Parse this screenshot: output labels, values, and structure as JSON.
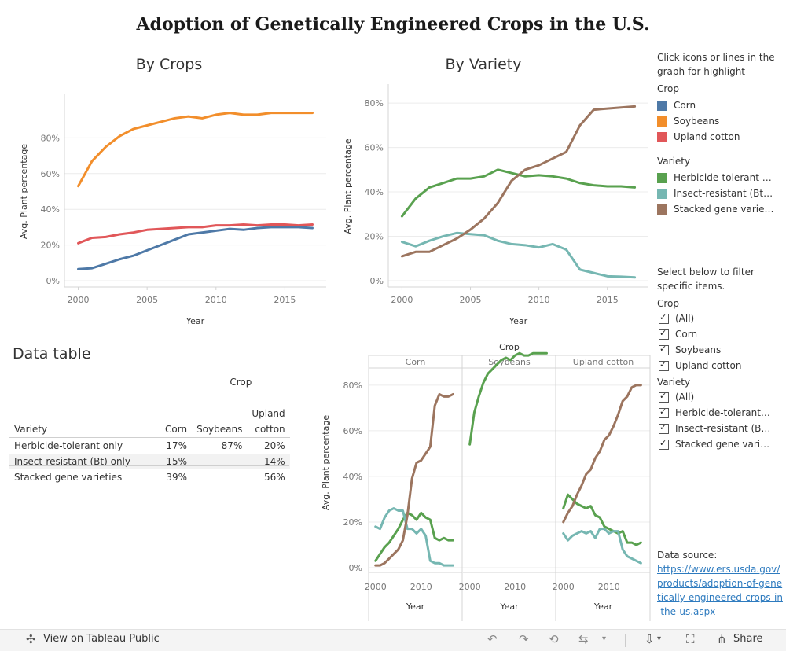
{
  "title": "Adoption of Genetically Engineered Crops in the U.S.",
  "colors": {
    "corn": "#4e79a7",
    "soybeans": "#f28e2b",
    "cotton": "#e15759",
    "herbicide": "#59a14f",
    "insect": "#76b7b2",
    "stacked": "#9c755f"
  },
  "chart_data": [
    {
      "type": "line",
      "title": "By Crops",
      "xlabel": "Year",
      "ylabel": "Avg. Plant percentage",
      "xlim": [
        1999,
        2018
      ],
      "ylim": [
        0,
        100
      ],
      "xticks": [
        "2000",
        "2005",
        "2010",
        "2015"
      ],
      "yticks": [
        "0%",
        "20%",
        "40%",
        "60%",
        "80%"
      ],
      "x": [
        2000,
        2001,
        2002,
        2003,
        2004,
        2005,
        2006,
        2007,
        2008,
        2009,
        2010,
        2011,
        2012,
        2013,
        2014,
        2015,
        2016,
        2017
      ],
      "series": [
        {
          "name": "Soybeans",
          "color": "#f28e2b",
          "values": [
            53,
            67,
            75,
            81,
            85,
            87,
            89,
            91,
            92,
            91,
            93,
            94,
            93,
            93,
            94,
            94,
            94,
            94
          ]
        },
        {
          "name": "Upland cotton",
          "color": "#e15759",
          "values": [
            21,
            24,
            24.5,
            26,
            27,
            28.5,
            29,
            29.5,
            30,
            30,
            31,
            31,
            31.5,
            31,
            31.5,
            31.5,
            31,
            31.5
          ]
        },
        {
          "name": "Corn",
          "color": "#4e79a7",
          "values": [
            6.5,
            7,
            9.5,
            12,
            14,
            17,
            20,
            23,
            26,
            27,
            28,
            29,
            28.5,
            29.5,
            30,
            30,
            30,
            29.5
          ]
        }
      ]
    },
    {
      "type": "line",
      "title": "By Variety",
      "xlabel": "Year",
      "ylabel": "Avg. Plant percentage",
      "xlim": [
        1999,
        2018
      ],
      "ylim": [
        0,
        85
      ],
      "xticks": [
        "2000",
        "2005",
        "2010",
        "2015"
      ],
      "yticks": [
        "0%",
        "20%",
        "40%",
        "60%",
        "80%"
      ],
      "x": [
        2000,
        2001,
        2002,
        2003,
        2004,
        2005,
        2006,
        2007,
        2008,
        2009,
        2010,
        2011,
        2012,
        2013,
        2014,
        2015,
        2016,
        2017
      ],
      "series": [
        {
          "name": "Herbicide-tolerant only",
          "color": "#59a14f",
          "values": [
            29,
            37,
            42,
            44,
            46,
            46,
            47,
            50,
            48.5,
            47,
            47.5,
            47,
            46,
            44,
            43,
            42.5,
            42.5,
            42
          ]
        },
        {
          "name": "Insect-resistant (Bt) only",
          "color": "#76b7b2",
          "values": [
            17.5,
            15.5,
            18,
            20,
            21.5,
            21,
            20.5,
            18,
            16.5,
            16,
            15,
            16.5,
            14,
            5,
            3.5,
            2,
            1.8,
            1.5
          ]
        },
        {
          "name": "Stacked gene varieties",
          "color": "#9c755f",
          "values": [
            11,
            13,
            13,
            16,
            19,
            23,
            28,
            35,
            45,
            50,
            52,
            55,
            58,
            70,
            77,
            77.5,
            78,
            78.5
          ]
        }
      ]
    },
    {
      "type": "line",
      "title": "Crop",
      "xlabel": "Year",
      "ylabel": "Avg. Plant percentage",
      "ylim": [
        0,
        92
      ],
      "yticks": [
        "0%",
        "20%",
        "40%",
        "60%",
        "80%"
      ],
      "xticks": [
        "2000",
        "2010"
      ],
      "panels": [
        {
          "name": "Corn",
          "x": [
            2000,
            2001,
            2002,
            2003,
            2004,
            2005,
            2006,
            2007,
            2008,
            2009,
            2010,
            2011,
            2012,
            2013,
            2014,
            2015,
            2016,
            2017
          ],
          "series": [
            {
              "name": "Herbicide-tolerant only",
              "values": [
                3,
                6,
                9,
                11,
                14,
                17,
                21,
                24,
                23,
                21,
                24,
                22,
                21,
                13,
                12,
                13,
                12,
                12
              ]
            },
            {
              "name": "Insect-resistant (Bt) only",
              "values": [
                18,
                17,
                22,
                25,
                26,
                25,
                25,
                17,
                17,
                15,
                17,
                14,
                3,
                2,
                2,
                1,
                1,
                1
              ]
            },
            {
              "name": "Stacked gene varieties",
              "values": [
                1,
                1,
                2,
                4,
                6,
                8,
                12,
                23,
                39,
                46,
                47,
                50,
                53,
                71,
                76,
                75,
                75,
                76
              ]
            }
          ]
        },
        {
          "name": "Soybeans",
          "x": [
            2000,
            2001,
            2002,
            2003,
            2004,
            2005,
            2006,
            2007,
            2008,
            2009,
            2010,
            2011,
            2012,
            2013,
            2014,
            2015,
            2016,
            2017
          ],
          "series": [
            {
              "name": "Herbicide-tolerant only",
              "values": [
                54,
                68,
                75,
                81,
                85,
                87,
                89,
                91,
                92,
                91,
                93,
                94,
                93,
                93,
                94,
                94,
                94,
                94
              ]
            }
          ]
        },
        {
          "name": "Upland cotton",
          "x": [
            2000,
            2001,
            2002,
            2003,
            2004,
            2005,
            2006,
            2007,
            2008,
            2009,
            2010,
            2011,
            2012,
            2013,
            2014,
            2015,
            2016,
            2017
          ],
          "series": [
            {
              "name": "Herbicide-tolerant only",
              "values": [
                26,
                32,
                30,
                28,
                27,
                26,
                27,
                23,
                22,
                18,
                17,
                16,
                15,
                16,
                11,
                11,
                10,
                11
              ]
            },
            {
              "name": "Insect-resistant (Bt) only",
              "values": [
                15,
                12,
                14,
                15,
                16,
                15,
                16,
                13,
                17,
                17,
                15,
                16,
                16,
                8,
                5,
                4,
                3,
                2
              ]
            },
            {
              "name": "Stacked gene varieties",
              "values": [
                20,
                24,
                27,
                32,
                36,
                41,
                43,
                48,
                51,
                56,
                58,
                62,
                67,
                73,
                75,
                79,
                80,
                80
              ]
            }
          ]
        }
      ]
    }
  ],
  "chart_titles": {
    "by_crops": "By Crops",
    "by_variety": "By Variety",
    "facet_header": "Crop"
  },
  "axis": {
    "year": "Year",
    "avg_plant": "Avg. Plant percentage"
  },
  "data_table": {
    "heading": "Data table",
    "crop_header": "Crop",
    "variety_header": "Variety",
    "columns": [
      "Corn",
      "Soybeans",
      "Upland",
      "cotton"
    ],
    "rows": [
      {
        "variety": "Herbicide-tolerant only",
        "corn": "17%",
        "soybeans": "87%",
        "cotton": "20%"
      },
      {
        "variety": "Insect-resistant (Bt) only",
        "corn": "15%",
        "soybeans": "",
        "cotton": "14%"
      },
      {
        "variety": "Stacked gene varieties",
        "corn": "39%",
        "soybeans": "",
        "cotton": "56%"
      }
    ]
  },
  "legend": {
    "instruction": "Click icons or lines in the graph for highlight",
    "crop_heading": "Crop",
    "crop_items": [
      "Corn",
      "Soybeans",
      "Upland cotton"
    ],
    "variety_heading": "Variety",
    "variety_items": [
      "Herbicide-tolerant o...",
      "Insect-resistant (Bt) ...",
      "Stacked gene varieties"
    ]
  },
  "filters": {
    "instruction": "Select below to filter specific items.",
    "crop_heading": "Crop",
    "crop_items": [
      "(All)",
      "Corn",
      "Soybeans",
      "Upland cotton"
    ],
    "variety_heading": "Variety",
    "variety_items": [
      "(All)",
      "Herbicide-tolerant o...",
      "Insect-resistant (Bt)...",
      "Stacked gene varieti..."
    ]
  },
  "source": {
    "label": "Data source:",
    "link": "https://www.ers.usda.gov/products/adoption-of-genetically-engineered-crops-in-the-us.aspx"
  },
  "toolbar": {
    "view_label": "View on Tableau Public",
    "share_label": "Share",
    "icons": [
      "tableau-icon",
      "undo-icon",
      "redo-icon",
      "revert-icon",
      "refresh-icon",
      "download-icon",
      "fullscreen-icon",
      "share-icon"
    ]
  }
}
